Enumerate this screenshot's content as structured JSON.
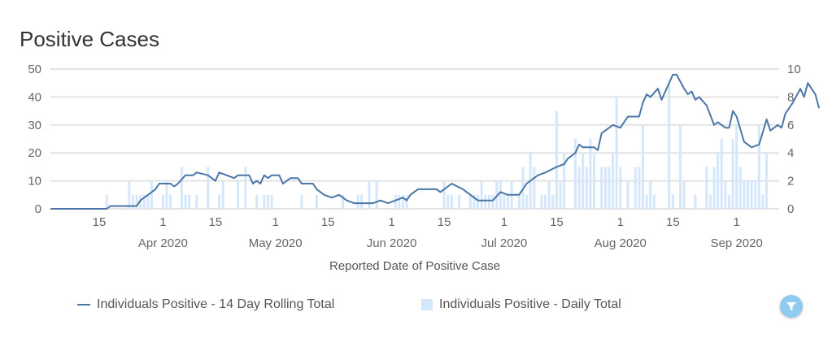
{
  "chart_data": {
    "type": "bar+line",
    "title": "Positive Cases",
    "xlabel": "Reported Date of Positive Case",
    "ylabel_left": "",
    "ylabel_right": "",
    "ylim_left": [
      0,
      50
    ],
    "ylim_right": [
      0,
      10
    ],
    "yticks_left": [
      "0",
      "10",
      "20",
      "30",
      "40",
      "50"
    ],
    "yticks_right": [
      "0",
      "2",
      "4",
      "6",
      "8",
      "10"
    ],
    "xticks": [
      {
        "date": "2020-03-15",
        "label": "15",
        "month": ""
      },
      {
        "date": "2020-04-01",
        "label": "1",
        "month": "Apr 2020"
      },
      {
        "date": "2020-04-15",
        "label": "15",
        "month": ""
      },
      {
        "date": "2020-05-01",
        "label": "1",
        "month": "May 2020"
      },
      {
        "date": "2020-05-15",
        "label": "15",
        "month": ""
      },
      {
        "date": "2020-06-01",
        "label": "1",
        "month": "Jun 2020"
      },
      {
        "date": "2020-06-15",
        "label": "15",
        "month": ""
      },
      {
        "date": "2020-07-01",
        "label": "1",
        "month": "Jul 2020"
      },
      {
        "date": "2020-07-15",
        "label": "15",
        "month": ""
      },
      {
        "date": "2020-08-01",
        "label": "1",
        "month": "Aug 2020"
      },
      {
        "date": "2020-08-15",
        "label": "15",
        "month": ""
      },
      {
        "date": "2020-09-01",
        "label": "1",
        "month": "Sep 2020"
      }
    ],
    "grid": true,
    "legend_position": "bottom",
    "series": [
      {
        "name": "Individuals Positive - 14 Day Rolling Total",
        "type": "line",
        "axis": "left",
        "color": "#4a76a8",
        "points": [
          [
            "2020-03-02",
            0
          ],
          [
            "2020-03-17",
            0
          ],
          [
            "2020-03-18",
            1
          ],
          [
            "2020-03-25",
            1
          ],
          [
            "2020-03-26",
            3
          ],
          [
            "2020-03-30",
            7
          ],
          [
            "2020-03-31",
            9
          ],
          [
            "2020-04-03",
            9
          ],
          [
            "2020-04-04",
            8
          ],
          [
            "2020-04-05",
            9
          ],
          [
            "2020-04-07",
            12
          ],
          [
            "2020-04-09",
            12
          ],
          [
            "2020-04-10",
            13
          ],
          [
            "2020-04-13",
            12
          ],
          [
            "2020-04-15",
            10
          ],
          [
            "2020-04-16",
            13
          ],
          [
            "2020-04-18",
            12
          ],
          [
            "2020-04-20",
            11
          ],
          [
            "2020-04-21",
            12
          ],
          [
            "2020-04-24",
            12
          ],
          [
            "2020-04-25",
            9
          ],
          [
            "2020-04-26",
            10
          ],
          [
            "2020-04-27",
            9
          ],
          [
            "2020-04-28",
            12
          ],
          [
            "2020-04-29",
            11
          ],
          [
            "2020-04-30",
            12
          ],
          [
            "2020-05-02",
            12
          ],
          [
            "2020-05-03",
            9
          ],
          [
            "2020-05-05",
            11
          ],
          [
            "2020-05-07",
            11
          ],
          [
            "2020-05-08",
            9
          ],
          [
            "2020-05-11",
            9
          ],
          [
            "2020-05-12",
            7
          ],
          [
            "2020-05-14",
            5
          ],
          [
            "2020-05-16",
            4
          ],
          [
            "2020-05-18",
            5
          ],
          [
            "2020-05-20",
            3
          ],
          [
            "2020-05-22",
            2
          ],
          [
            "2020-05-27",
            2
          ],
          [
            "2020-05-29",
            3
          ],
          [
            "2020-05-31",
            2
          ],
          [
            "2020-06-02",
            3
          ],
          [
            "2020-06-04",
            4
          ],
          [
            "2020-06-05",
            3
          ],
          [
            "2020-06-06",
            5
          ],
          [
            "2020-06-08",
            7
          ],
          [
            "2020-06-13",
            7
          ],
          [
            "2020-06-14",
            6
          ],
          [
            "2020-06-17",
            9
          ],
          [
            "2020-06-20",
            7
          ],
          [
            "2020-06-24",
            3
          ],
          [
            "2020-06-28",
            3
          ],
          [
            "2020-06-30",
            6
          ],
          [
            "2020-07-02",
            5
          ],
          [
            "2020-07-05",
            5
          ],
          [
            "2020-07-07",
            9
          ],
          [
            "2020-07-10",
            12
          ],
          [
            "2020-07-12",
            13
          ],
          [
            "2020-07-15",
            15
          ],
          [
            "2020-07-17",
            16
          ],
          [
            "2020-07-18",
            18
          ],
          [
            "2020-07-20",
            20
          ],
          [
            "2020-07-21",
            23
          ],
          [
            "2020-07-22",
            22
          ],
          [
            "2020-07-25",
            22
          ],
          [
            "2020-07-26",
            21
          ],
          [
            "2020-07-27",
            27
          ],
          [
            "2020-07-30",
            30
          ],
          [
            "2020-08-01",
            29
          ],
          [
            "2020-08-03",
            33
          ],
          [
            "2020-08-06",
            33
          ],
          [
            "2020-08-07",
            38
          ],
          [
            "2020-08-08",
            41
          ],
          [
            "2020-08-09",
            40
          ],
          [
            "2020-08-11",
            43
          ],
          [
            "2020-08-12",
            39
          ],
          [
            "2020-08-14",
            45
          ],
          [
            "2020-08-15",
            48
          ],
          [
            "2020-08-16",
            48
          ],
          [
            "2020-08-18",
            43
          ],
          [
            "2020-08-19",
            41
          ],
          [
            "2020-08-20",
            42
          ],
          [
            "2020-08-21",
            39
          ],
          [
            "2020-08-22",
            40
          ],
          [
            "2020-08-24",
            37
          ],
          [
            "2020-08-26",
            30
          ],
          [
            "2020-08-27",
            31
          ],
          [
            "2020-08-29",
            29
          ],
          [
            "2020-08-30",
            29
          ],
          [
            "2020-08-31",
            35
          ],
          [
            "2020-09-01",
            33
          ],
          [
            "2020-09-03",
            24
          ],
          [
            "2020-09-05",
            22
          ],
          [
            "2020-09-07",
            23
          ],
          [
            "2020-09-09",
            32
          ],
          [
            "2020-09-10",
            28
          ],
          [
            "2020-09-12",
            30
          ],
          [
            "2020-09-13",
            29
          ],
          [
            "2020-09-14",
            34
          ],
          [
            "2020-09-16",
            38
          ],
          [
            "2020-09-18",
            43
          ],
          [
            "2020-09-19",
            40
          ],
          [
            "2020-09-20",
            45
          ],
          [
            "2020-09-22",
            41
          ],
          [
            "2020-09-23",
            36
          ]
        ]
      },
      {
        "name": "Individuals Positive - Daily Total",
        "type": "bar",
        "axis": "right",
        "color": "#d5e7fa",
        "points": [
          [
            "2020-03-17",
            1
          ],
          [
            "2020-03-23",
            2
          ],
          [
            "2020-03-24",
            1
          ],
          [
            "2020-03-25",
            1
          ],
          [
            "2020-03-26",
            1
          ],
          [
            "2020-03-27",
            1
          ],
          [
            "2020-03-28",
            1
          ],
          [
            "2020-03-29",
            2
          ],
          [
            "2020-04-01",
            1
          ],
          [
            "2020-04-02",
            2
          ],
          [
            "2020-04-03",
            1
          ],
          [
            "2020-04-06",
            3
          ],
          [
            "2020-04-07",
            1
          ],
          [
            "2020-04-08",
            1
          ],
          [
            "2020-04-10",
            1
          ],
          [
            "2020-04-13",
            3
          ],
          [
            "2020-04-16",
            1
          ],
          [
            "2020-04-17",
            2
          ],
          [
            "2020-04-21",
            2
          ],
          [
            "2020-04-23",
            3
          ],
          [
            "2020-04-26",
            1
          ],
          [
            "2020-04-28",
            1
          ],
          [
            "2020-04-29",
            1
          ],
          [
            "2020-04-30",
            1
          ],
          [
            "2020-05-08",
            1
          ],
          [
            "2020-05-12",
            1
          ],
          [
            "2020-05-19",
            1
          ],
          [
            "2020-05-23",
            1
          ],
          [
            "2020-05-24",
            1
          ],
          [
            "2020-05-26",
            2
          ],
          [
            "2020-05-28",
            2
          ],
          [
            "2020-06-02",
            1
          ],
          [
            "2020-06-03",
            1
          ],
          [
            "2020-06-04",
            1
          ],
          [
            "2020-06-05",
            1
          ],
          [
            "2020-06-15",
            2
          ],
          [
            "2020-06-16",
            1
          ],
          [
            "2020-06-17",
            1
          ],
          [
            "2020-06-19",
            1
          ],
          [
            "2020-06-22",
            1
          ],
          [
            "2020-06-23",
            1
          ],
          [
            "2020-06-24",
            1
          ],
          [
            "2020-06-25",
            2
          ],
          [
            "2020-06-26",
            1
          ],
          [
            "2020-06-27",
            1
          ],
          [
            "2020-06-28",
            1
          ],
          [
            "2020-06-29",
            2
          ],
          [
            "2020-06-30",
            2
          ],
          [
            "2020-07-01",
            1
          ],
          [
            "2020-07-02",
            1
          ],
          [
            "2020-07-03",
            2
          ],
          [
            "2020-07-05",
            1
          ],
          [
            "2020-07-06",
            3
          ],
          [
            "2020-07-07",
            1
          ],
          [
            "2020-07-08",
            4
          ],
          [
            "2020-07-09",
            3
          ],
          [
            "2020-07-11",
            1
          ],
          [
            "2020-07-12",
            1
          ],
          [
            "2020-07-13",
            2
          ],
          [
            "2020-07-14",
            1
          ],
          [
            "2020-07-15",
            7
          ],
          [
            "2020-07-16",
            2
          ],
          [
            "2020-07-17",
            4
          ],
          [
            "2020-07-20",
            5
          ],
          [
            "2020-07-21",
            3
          ],
          [
            "2020-07-22",
            4
          ],
          [
            "2020-07-23",
            3
          ],
          [
            "2020-07-24",
            5
          ],
          [
            "2020-07-25",
            4
          ],
          [
            "2020-07-27",
            3
          ],
          [
            "2020-07-28",
            3
          ],
          [
            "2020-07-29",
            3
          ],
          [
            "2020-07-30",
            4
          ],
          [
            "2020-07-31",
            8
          ],
          [
            "2020-08-01",
            3
          ],
          [
            "2020-08-03",
            2
          ],
          [
            "2020-08-05",
            3
          ],
          [
            "2020-08-06",
            3
          ],
          [
            "2020-08-07",
            6
          ],
          [
            "2020-08-08",
            1
          ],
          [
            "2020-08-09",
            2
          ],
          [
            "2020-08-10",
            1
          ],
          [
            "2020-08-14",
            9
          ],
          [
            "2020-08-15",
            1
          ],
          [
            "2020-08-17",
            6
          ],
          [
            "2020-08-18",
            2
          ],
          [
            "2020-08-21",
            1
          ],
          [
            "2020-08-24",
            3
          ],
          [
            "2020-08-25",
            1
          ],
          [
            "2020-08-26",
            3
          ],
          [
            "2020-08-27",
            4
          ],
          [
            "2020-08-28",
            5
          ],
          [
            "2020-08-29",
            2
          ],
          [
            "2020-08-30",
            1
          ],
          [
            "2020-08-31",
            5
          ],
          [
            "2020-09-01",
            6
          ],
          [
            "2020-09-02",
            3
          ],
          [
            "2020-09-03",
            2
          ],
          [
            "2020-09-04",
            2
          ],
          [
            "2020-09-05",
            2
          ],
          [
            "2020-09-06",
            2
          ],
          [
            "2020-09-07",
            6
          ],
          [
            "2020-09-08",
            1
          ],
          [
            "2020-09-09",
            4
          ]
        ]
      }
    ]
  },
  "legend": {
    "line_label": "Individuals Positive - 14 Day Rolling Total",
    "bar_label": "Individuals Positive - Daily Total"
  },
  "filter_button": {
    "icon": "filter-icon"
  }
}
